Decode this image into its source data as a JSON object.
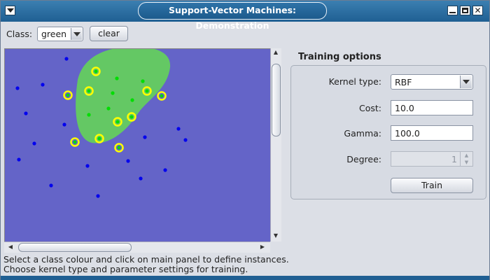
{
  "window": {
    "title": "Support-Vector Machines: Demonstration",
    "menu_icon": "window-menu-icon",
    "controls": [
      "minimize-icon",
      "maximize-icon",
      "close-icon"
    ]
  },
  "toolbar": {
    "class_label": "Class:",
    "class_value": "green",
    "clear_label": "clear"
  },
  "canvas": {
    "background_color": "#6464c8",
    "region_color": "#64c864",
    "blue_color": "#0000ee",
    "green_color": "#00dd00",
    "support_vector_ring_color": "#ffff00"
  },
  "status": {
    "line1": "Select a class colour and click on main panel to define instances.",
    "line2": "Choose kernel type and parameter settings for training."
  },
  "options": {
    "title": "Training options",
    "kernel_label": "Kernel type:",
    "kernel_value": "RBF",
    "cost_label": "Cost:",
    "cost_value": "10.0",
    "gamma_label": "Gamma:",
    "gamma_value": "100.0",
    "degree_label": "Degree:",
    "degree_value": "1",
    "train_label": "Train"
  }
}
